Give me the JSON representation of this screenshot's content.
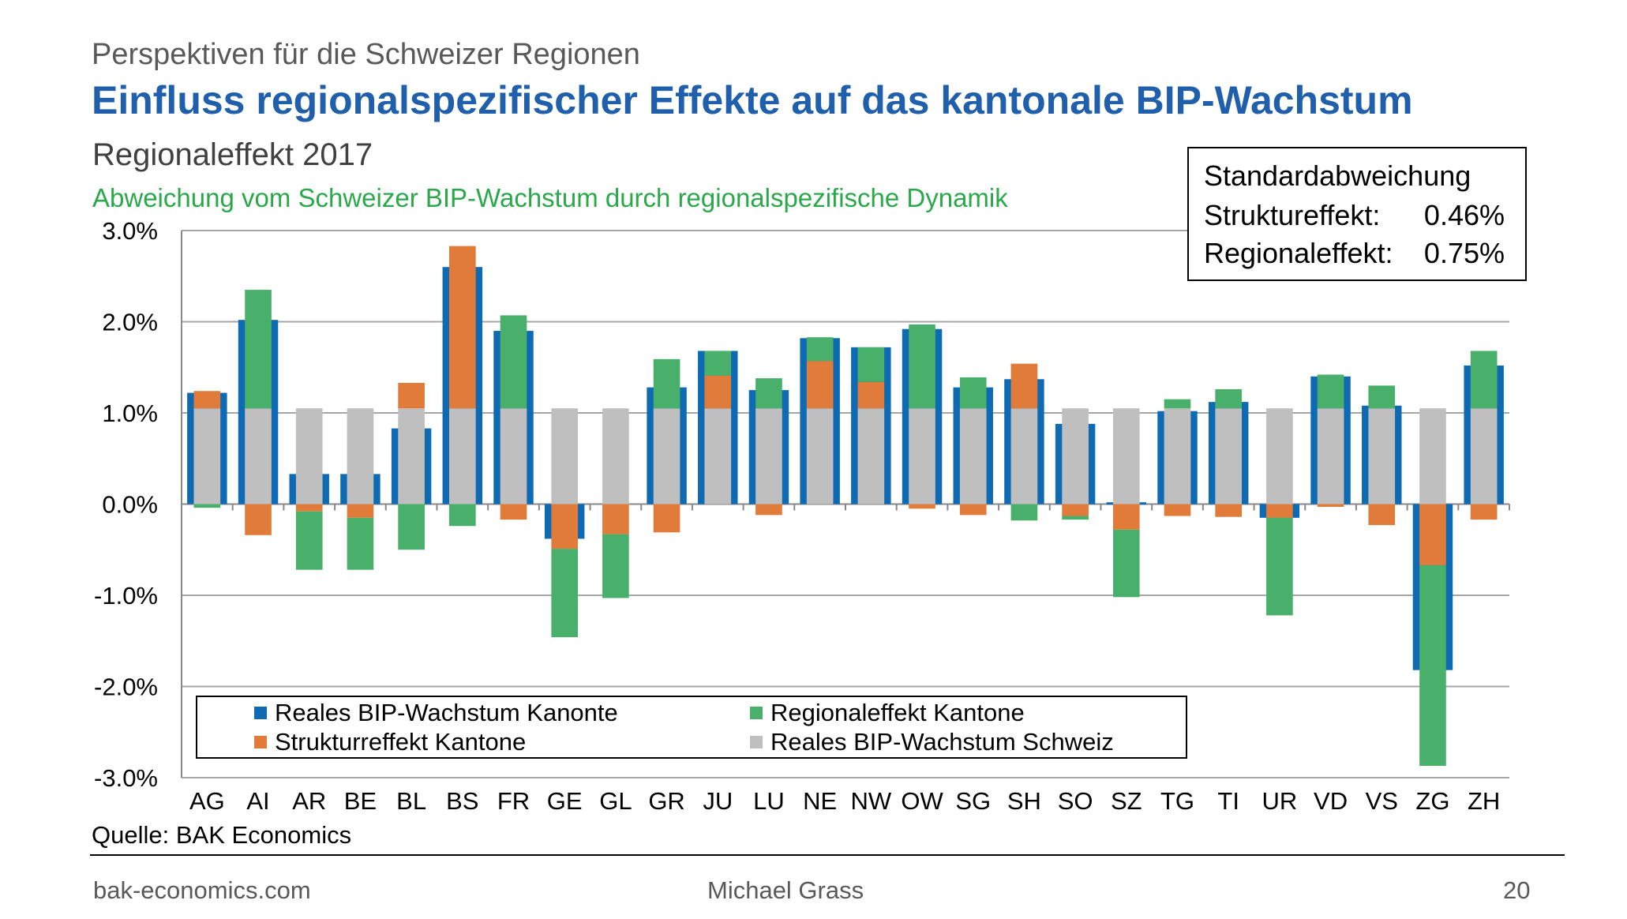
{
  "header": {
    "kicker": "Perspektiven für die Schweizer Regionen",
    "title": "Einfluss regionalspezifischer Effekte auf das kantonale BIP-Wachstum"
  },
  "chart_data": {
    "type": "bar",
    "title": "Regionaleffekt 2017",
    "subtitle": "Abweichung vom Schweizer BIP-Wachstum durch regionalspezifische Dynamik",
    "categories": [
      "AG",
      "AI",
      "AR",
      "BE",
      "BL",
      "BS",
      "FR",
      "GE",
      "GL",
      "GR",
      "JU",
      "LU",
      "NE",
      "NW",
      "OW",
      "SG",
      "SH",
      "SO",
      "SZ",
      "TG",
      "TI",
      "UR",
      "VD",
      "VS",
      "ZG",
      "ZH"
    ],
    "ylim": [
      -3.0,
      3.0
    ],
    "yticks": [
      "3.0%",
      "2.0%",
      "1.0%",
      "0.0%",
      "-1.0%",
      "-2.0%",
      "-3.0%"
    ],
    "grid": true,
    "swiss_growth": 1.05,
    "series": [
      {
        "name": "Reales BIP-Wachstum Kanonte",
        "color": "#0f6ab4",
        "values": [
          1.22,
          2.02,
          0.33,
          0.33,
          0.83,
          2.6,
          1.9,
          -0.38,
          null,
          1.28,
          1.68,
          1.25,
          1.82,
          1.72,
          1.92,
          1.28,
          1.37,
          0.88,
          0.02,
          1.02,
          1.12,
          -0.15,
          1.4,
          1.08,
          -1.82,
          1.52
        ]
      },
      {
        "name": "Strukturreffekt Kantone",
        "color": "#e07b39",
        "values": [
          0.19,
          -0.34,
          -0.08,
          -0.15,
          0.28,
          1.78,
          -0.17,
          -0.49,
          -0.33,
          -0.31,
          0.36,
          -0.12,
          0.52,
          0.29,
          -0.05,
          -0.12,
          0.49,
          -0.13,
          -0.28,
          -0.13,
          -0.14,
          -0.15,
          -0.03,
          -0.23,
          -0.67,
          -0.17
        ]
      },
      {
        "name": "Regionaleffekt Kantone",
        "color": "#49b06c",
        "values": [
          -0.04,
          1.3,
          -0.64,
          -0.57,
          -0.5,
          -0.24,
          1.02,
          -0.97,
          -0.7,
          0.54,
          0.27,
          0.33,
          0.26,
          0.38,
          0.92,
          0.34,
          -0.18,
          -0.04,
          -0.74,
          0.1,
          0.21,
          -1.07,
          0.37,
          0.25,
          -2.2,
          0.63
        ]
      },
      {
        "name": "Reales BIP-Wachstum Schweiz",
        "color": "#bfbfbf",
        "values": [
          1.05,
          1.05,
          1.05,
          1.05,
          1.05,
          1.05,
          1.05,
          1.05,
          1.05,
          1.05,
          1.05,
          1.05,
          1.05,
          1.05,
          1.05,
          1.05,
          1.05,
          1.05,
          1.05,
          1.05,
          1.05,
          1.05,
          1.05,
          1.05,
          1.05,
          1.05
        ]
      }
    ],
    "legend": {
      "placement": "bottom-left",
      "items": [
        "Reales BIP-Wachstum Kanonte",
        "Regionaleffekt Kantone",
        "Strukturreffekt Kantone",
        "Reales BIP-Wachstum Schweiz"
      ]
    },
    "info_box": {
      "heading": "Standardabweichung",
      "lines": [
        {
          "label": "Struktureffekt:",
          "value": "0.46%"
        },
        {
          "label": "Regionaleffekt:",
          "value": "0.75%"
        }
      ],
      "placement": "top-right"
    }
  },
  "source": "Quelle: BAK Economics",
  "footer": {
    "left": "bak-economics.com",
    "center": "Michael Grass",
    "right": "20"
  }
}
